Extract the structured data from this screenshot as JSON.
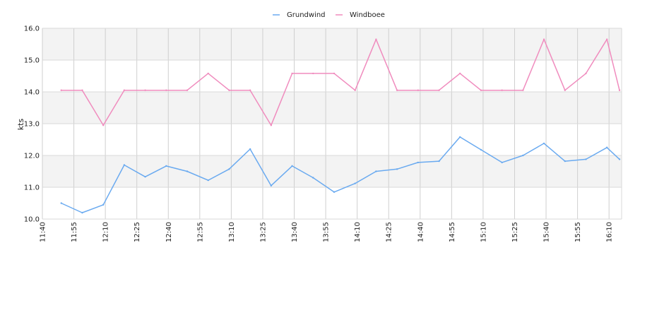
{
  "chart_data": {
    "type": "line",
    "title": "",
    "xlabel": "",
    "ylabel": "kts",
    "ylim": [
      10.0,
      16.0
    ],
    "y_ticks": [
      "10.0",
      "11.0",
      "12.0",
      "13.0",
      "14.0",
      "15.0",
      "16.0"
    ],
    "x_ticks": [
      "11:40",
      "11:55",
      "12:10",
      "12:25",
      "12:40",
      "12:55",
      "13:10",
      "13:25",
      "13:40",
      "13:55",
      "14:10",
      "14:25",
      "14:40",
      "14:55",
      "15:10",
      "15:25",
      "15:40",
      "15:55",
      "16:10"
    ],
    "x_range": [
      "11:40",
      "16:16"
    ],
    "grid": true,
    "legend_position": "top-center",
    "series": [
      {
        "name": "Grundwind",
        "color": "#6aaaf0",
        "x": [
          "11:49",
          "11:59",
          "12:09",
          "12:19",
          "12:29",
          "12:39",
          "12:49",
          "12:59",
          "13:09",
          "13:19",
          "13:29",
          "13:39",
          "13:49",
          "13:59",
          "14:09",
          "14:19",
          "14:29",
          "14:39",
          "14:49",
          "14:59",
          "15:09",
          "15:19",
          "15:29",
          "15:39",
          "15:49",
          "15:59",
          "16:09",
          "16:15"
        ],
        "values": [
          10.5,
          10.2,
          10.45,
          11.7,
          11.33,
          11.67,
          11.5,
          11.22,
          11.57,
          12.2,
          11.05,
          11.67,
          11.3,
          10.85,
          11.12,
          11.5,
          11.57,
          11.78,
          11.82,
          12.58,
          12.18,
          11.78,
          12.0,
          12.38,
          11.82,
          11.88,
          12.25,
          11.88
        ]
      },
      {
        "name": "Windboee",
        "color": "#f08cbe",
        "x": [
          "11:49",
          "11:59",
          "12:09",
          "12:19",
          "12:29",
          "12:39",
          "12:49",
          "12:59",
          "13:09",
          "13:19",
          "13:29",
          "13:39",
          "13:49",
          "13:59",
          "14:09",
          "14:19",
          "14:29",
          "14:39",
          "14:49",
          "14:59",
          "15:09",
          "15:19",
          "15:29",
          "15:39",
          "15:49",
          "15:59",
          "16:09",
          "16:15"
        ],
        "values": [
          14.05,
          14.05,
          12.95,
          14.05,
          14.05,
          14.05,
          14.05,
          14.58,
          14.05,
          14.05,
          12.95,
          14.58,
          14.58,
          14.58,
          14.05,
          15.65,
          14.05,
          14.05,
          14.05,
          14.58,
          14.05,
          14.05,
          14.05,
          15.65,
          14.05,
          14.58,
          15.65,
          14.05
        ]
      }
    ]
  },
  "colors": {
    "band": "#f3f3f3",
    "grid": "#cfcfcf",
    "axis": "#d9d9d9"
  }
}
